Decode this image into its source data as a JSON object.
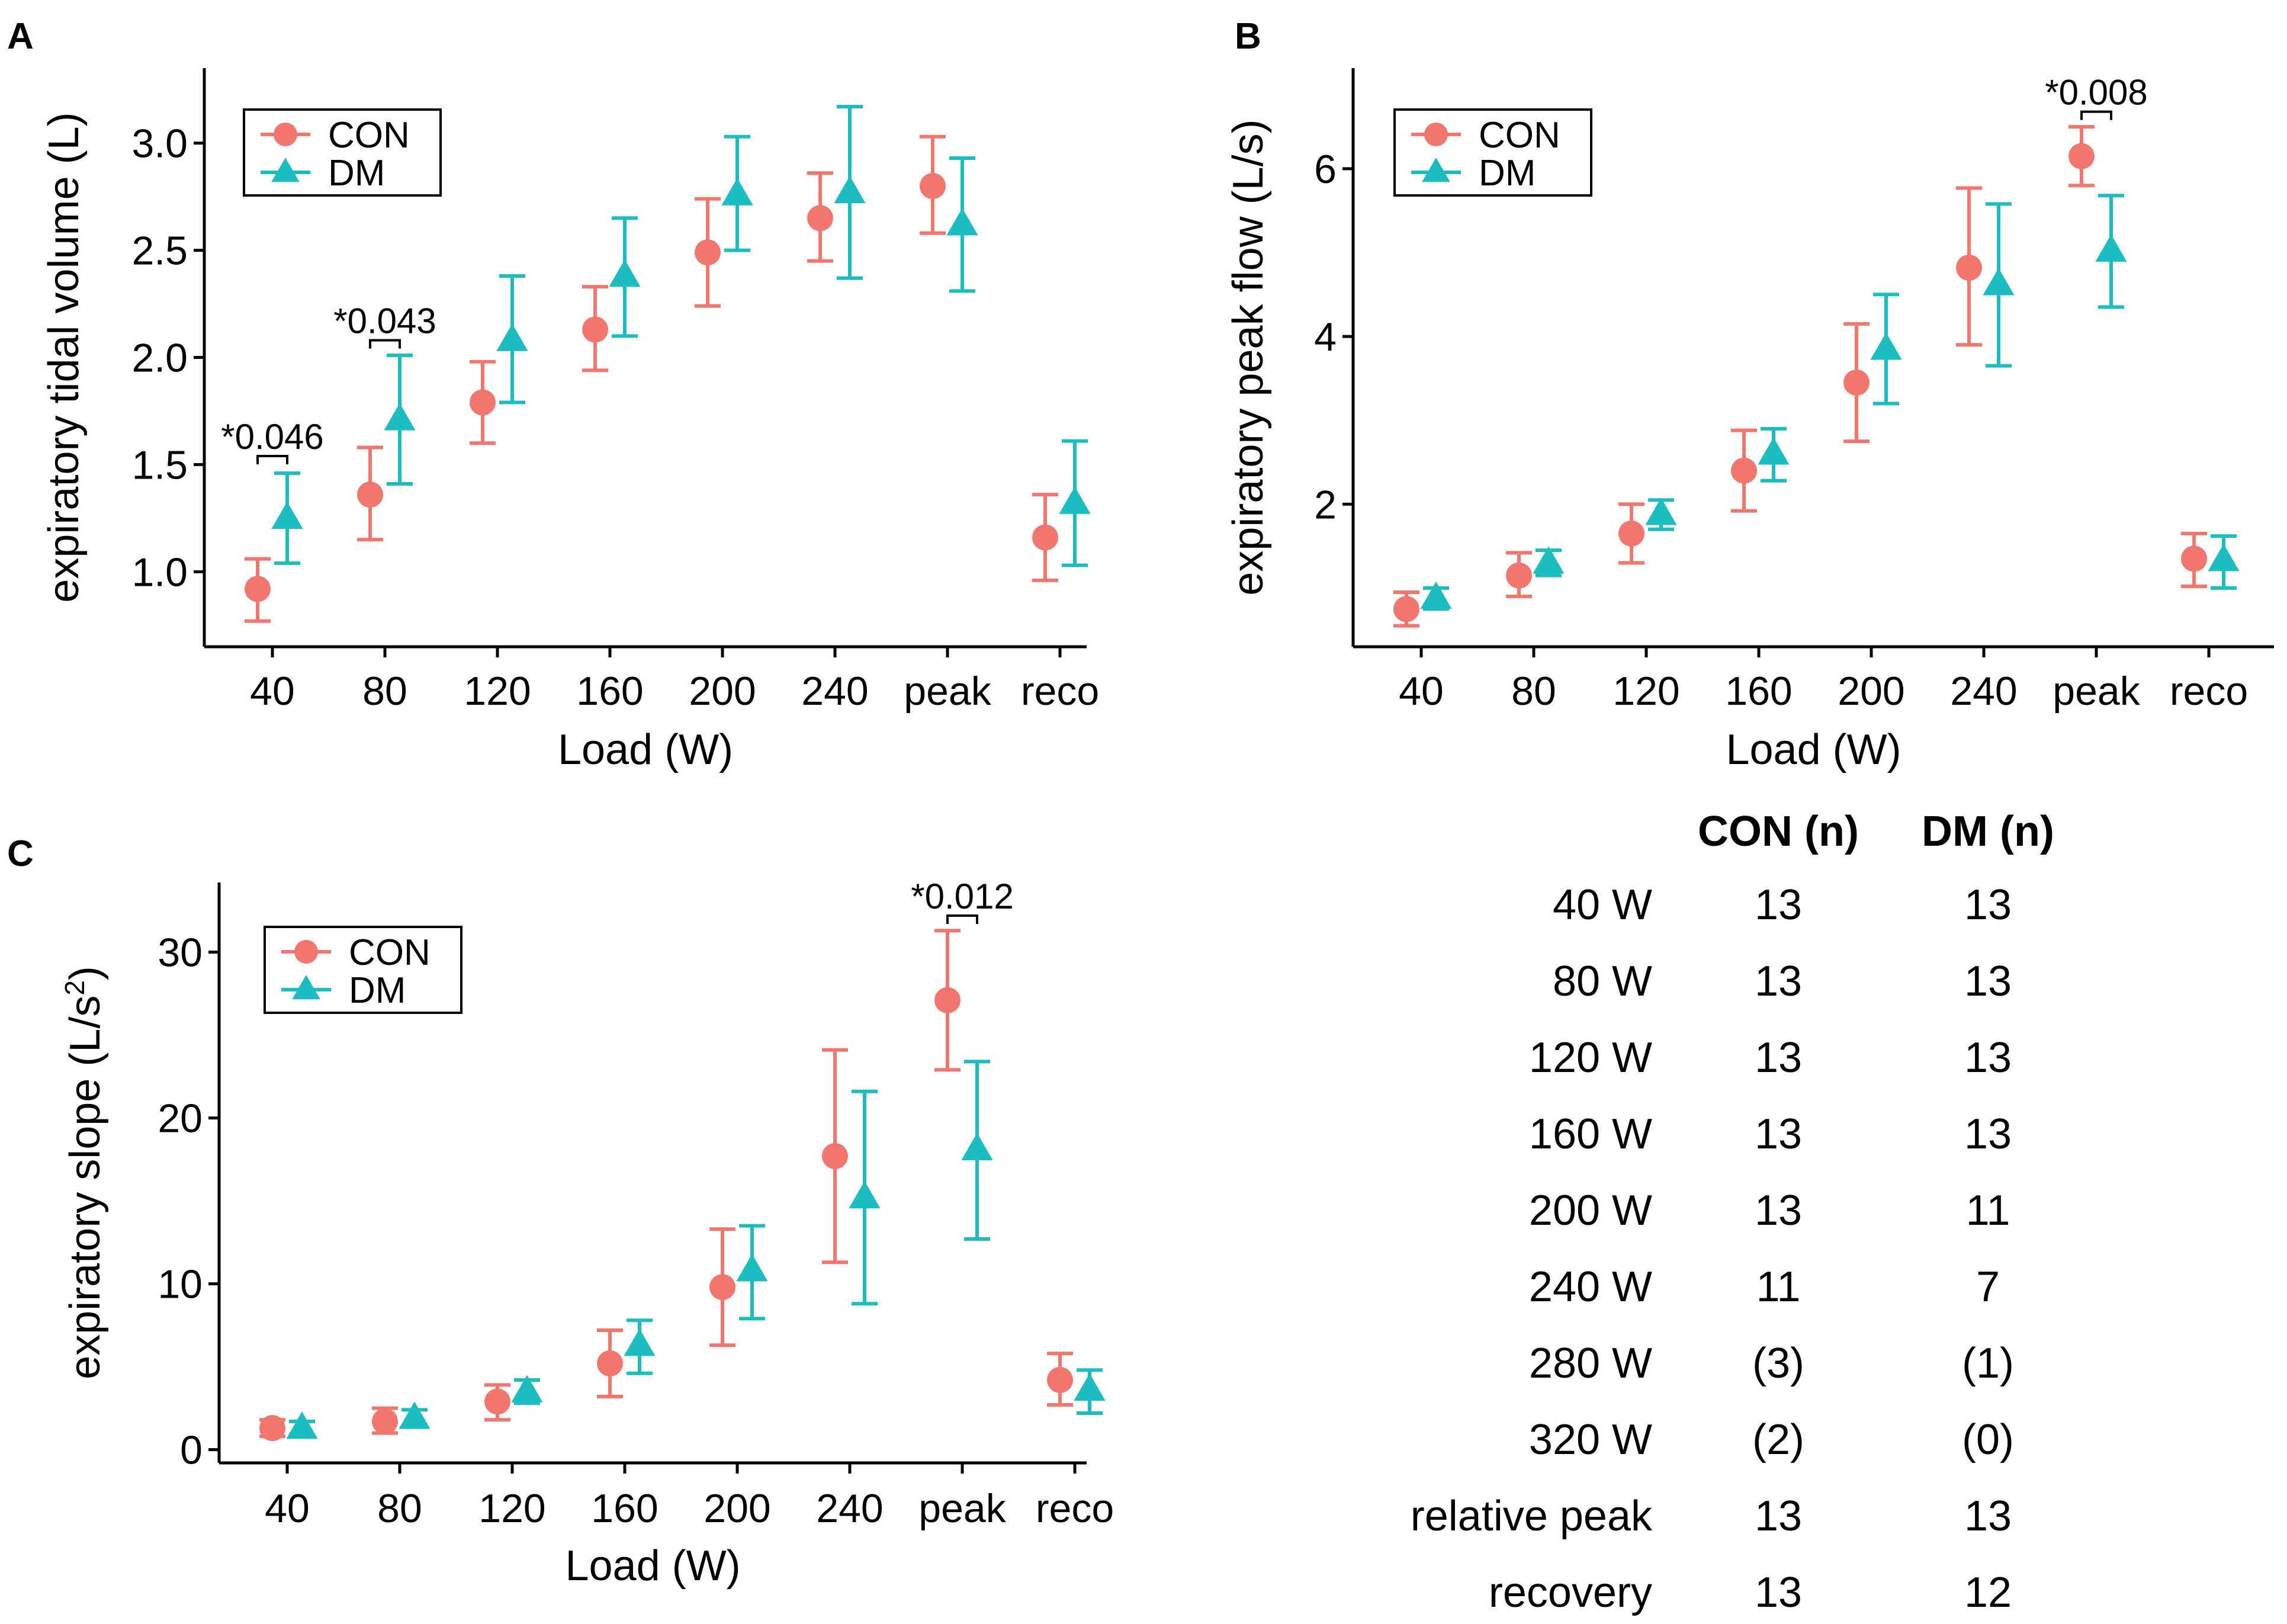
{
  "colors": {
    "con": "#F2766E",
    "dm": "#1BBDC1",
    "axis": "#000000",
    "text": "#000000"
  },
  "chart_data": [
    {
      "id": "A",
      "panel_label": "A",
      "type": "scatter",
      "subtype": "mean-with-error-bars",
      "title": "",
      "xlabel": "Load (W)",
      "ylabel": "expiratory tidal volume (L)",
      "categories": [
        "40",
        "80",
        "120",
        "160",
        "200",
        "240",
        "peak",
        "reco"
      ],
      "ylim": [
        0.65,
        3.35
      ],
      "yticks": [
        1.0,
        1.5,
        2.0,
        2.5,
        3.0
      ],
      "ytick_labels": [
        "1.0",
        "1.5",
        "2.0",
        "2.5",
        "3.0"
      ],
      "legend": {
        "position": "top-left",
        "entries": [
          "CON",
          "DM"
        ]
      },
      "series": [
        {
          "name": "CON",
          "marker": "circle",
          "mean": [
            0.92,
            1.36,
            1.79,
            2.13,
            2.49,
            2.65,
            2.8,
            1.16
          ],
          "lower": [
            0.77,
            1.15,
            1.6,
            1.94,
            2.24,
            2.45,
            2.58,
            0.96
          ],
          "upper": [
            1.06,
            1.58,
            1.98,
            2.33,
            2.74,
            2.86,
            3.03,
            1.36
          ]
        },
        {
          "name": "DM",
          "marker": "triangle",
          "mean": [
            1.25,
            1.71,
            2.08,
            2.38,
            2.76,
            2.77,
            2.62,
            1.32
          ],
          "lower": [
            1.04,
            1.41,
            1.79,
            2.1,
            2.5,
            2.37,
            2.31,
            1.03
          ],
          "upper": [
            1.46,
            2.01,
            2.38,
            2.65,
            3.03,
            3.17,
            2.93,
            1.61
          ]
        }
      ],
      "annotations": [
        {
          "category": "40",
          "text": "*0.046",
          "y": 1.54
        },
        {
          "category": "80",
          "text": "*0.043",
          "y": 2.08
        }
      ]
    },
    {
      "id": "B",
      "panel_label": "B",
      "type": "scatter",
      "subtype": "mean-with-error-bars",
      "title": "",
      "xlabel": "Load (W)",
      "ylabel": "expiratory peak flow (L/s)",
      "categories": [
        "40",
        "80",
        "120",
        "160",
        "200",
        "240",
        "peak",
        "reco"
      ],
      "ylim": [
        0.3,
        7.2
      ],
      "yticks": [
        2,
        4,
        6
      ],
      "ytick_labels": [
        "2",
        "4",
        "6"
      ],
      "legend": {
        "position": "top-left",
        "entries": [
          "CON",
          "DM"
        ]
      },
      "series": [
        {
          "name": "CON",
          "marker": "circle",
          "mean": [
            0.75,
            1.15,
            1.65,
            2.4,
            3.45,
            4.82,
            6.15,
            1.35
          ],
          "lower": [
            0.55,
            0.9,
            1.3,
            1.92,
            2.75,
            3.9,
            5.8,
            1.02
          ],
          "upper": [
            0.95,
            1.42,
            2.0,
            2.88,
            4.15,
            5.77,
            6.5,
            1.65
          ]
        },
        {
          "name": "DM",
          "marker": "triangle",
          "mean": [
            0.88,
            1.3,
            1.88,
            2.6,
            3.85,
            4.62,
            5.02,
            1.33
          ],
          "lower": [
            0.75,
            1.15,
            1.7,
            2.28,
            3.2,
            3.65,
            4.35,
            1.0
          ],
          "upper": [
            1.0,
            1.45,
            2.05,
            2.9,
            4.5,
            5.58,
            5.68,
            1.62
          ]
        }
      ],
      "annotations": [
        {
          "category": "peak",
          "text": "*0.008",
          "y": 6.68
        }
      ]
    },
    {
      "id": "C",
      "panel_label": "C",
      "type": "scatter",
      "subtype": "mean-with-error-bars",
      "title": "",
      "xlabel": "Load (W)",
      "ylabel": "expiratory slope (L/s",
      "ylabel_superscript": "2",
      "ylabel_suffix": ")",
      "categories": [
        "40",
        "80",
        "120",
        "160",
        "200",
        "240",
        "peak",
        "reco"
      ],
      "ylim": [
        -0.8,
        34.2
      ],
      "yticks": [
        0,
        10,
        20,
        30
      ],
      "ytick_labels": [
        "0",
        "10",
        "20",
        "30"
      ],
      "legend": {
        "position": "top-left",
        "entries": [
          "CON",
          "DM"
        ]
      },
      "series": [
        {
          "name": "CON",
          "marker": "circle",
          "mean": [
            1.3,
            1.7,
            2.9,
            5.2,
            9.8,
            17.7,
            27.1,
            4.2
          ],
          "lower": [
            0.8,
            1.0,
            1.8,
            3.2,
            6.3,
            11.3,
            22.9,
            2.7
          ],
          "upper": [
            1.8,
            2.5,
            3.9,
            7.2,
            13.3,
            24.1,
            31.3,
            5.8
          ]
        },
        {
          "name": "DM",
          "marker": "triangle",
          "mean": [
            1.3,
            1.9,
            3.5,
            6.3,
            10.8,
            15.2,
            18.1,
            3.6
          ],
          "lower": [
            0.9,
            1.4,
            2.8,
            4.6,
            7.9,
            8.8,
            12.7,
            2.2
          ],
          "upper": [
            1.7,
            2.4,
            4.2,
            7.8,
            13.5,
            21.6,
            23.4,
            4.8
          ]
        }
      ],
      "annotations": [
        {
          "category": "peak",
          "text": "*0.012",
          "y": 32.2
        }
      ]
    }
  ],
  "table": {
    "headers": [
      "",
      "CON (n)",
      "DM (n)"
    ],
    "rows": [
      [
        "40 W",
        "13",
        "13"
      ],
      [
        "80 W",
        "13",
        "13"
      ],
      [
        "120 W",
        "13",
        "13"
      ],
      [
        "160 W",
        "13",
        "13"
      ],
      [
        "200 W",
        "13",
        "11"
      ],
      [
        "240 W",
        "11",
        "7"
      ],
      [
        "280 W",
        "(3)",
        "(1)"
      ],
      [
        "320 W",
        "(2)",
        "(0)"
      ],
      [
        "relative peak",
        "13",
        "13"
      ],
      [
        "recovery",
        "13",
        "12"
      ]
    ]
  }
}
